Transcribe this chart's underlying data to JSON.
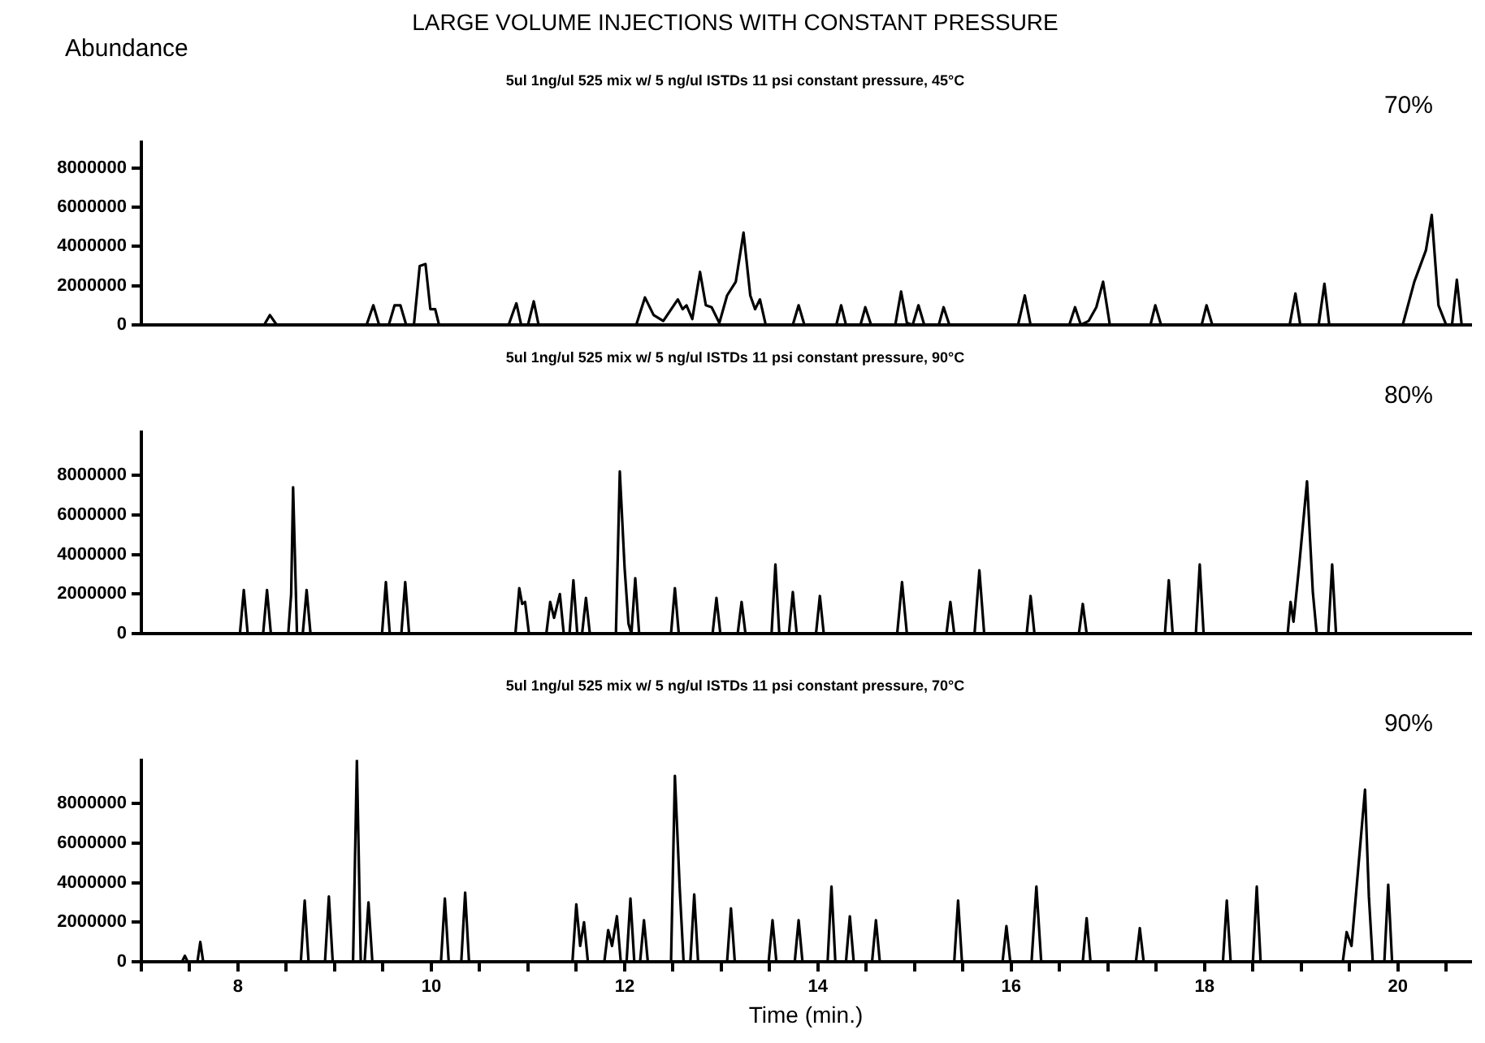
{
  "chart_data": [
    {
      "type": "line",
      "title": "LARGE VOLUME INJECTIONS WITH CONSTANT PRESSURE",
      "subtitle": "5ul 1ng/ul 525 mix w/ 5 ng/ul ISTDs 11 psi constant pressure, 45°C",
      "ylabel": "Abundance",
      "annotations": [
        "70%"
      ],
      "xlim": [
        7,
        20.75
      ],
      "ylim": [
        0,
        9300000
      ],
      "yticks": [
        0,
        2000000,
        4000000,
        6000000,
        8000000
      ],
      "tick_labels": "y",
      "grid": false,
      "legend": false,
      "marker": "none",
      "series": [
        {
          "color": "#000000",
          "x": [
            7.0,
            8.27,
            8.33,
            8.4,
            9.33,
            9.4,
            9.46,
            9.56,
            9.62,
            9.68,
            9.74,
            9.82,
            9.88,
            9.94,
            9.99,
            10.04,
            10.08,
            10.8,
            10.85,
            10.88,
            10.93,
            11.0,
            11.06,
            11.11,
            12.12,
            12.21,
            12.3,
            12.4,
            12.55,
            12.6,
            12.64,
            12.7,
            12.78,
            12.84,
            12.9,
            12.98,
            13.06,
            13.15,
            13.23,
            13.3,
            13.35,
            13.4,
            13.46,
            13.74,
            13.8,
            13.86,
            14.19,
            14.24,
            14.29,
            14.44,
            14.49,
            14.55,
            14.8,
            14.86,
            14.92,
            14.98,
            15.04,
            15.1,
            15.25,
            15.3,
            15.36,
            16.07,
            16.14,
            16.2,
            16.6,
            16.66,
            16.72,
            16.8,
            16.88,
            16.95,
            17.02,
            17.44,
            17.49,
            17.55,
            17.97,
            18.02,
            18.08,
            18.88,
            18.94,
            18.99,
            19.18,
            19.24,
            19.29,
            20.05,
            20.17,
            20.29,
            20.35,
            20.42,
            20.5,
            20.56,
            20.61,
            20.66,
            20.75
          ],
          "values": [
            0,
            0,
            500000,
            0,
            0,
            1000000,
            0,
            0,
            1000000,
            1000000,
            0,
            0,
            3000000,
            3100000,
            800000,
            800000,
            0,
            0,
            700000,
            1100000,
            0,
            0,
            1200000,
            0,
            0,
            1400000,
            500000,
            200000,
            1300000,
            800000,
            1000000,
            300000,
            2700000,
            1000000,
            900000,
            100000,
            1500000,
            2200000,
            4700000,
            1500000,
            800000,
            1300000,
            0,
            0,
            1000000,
            0,
            0,
            1000000,
            0,
            0,
            900000,
            0,
            0,
            1700000,
            100000,
            0,
            1000000,
            0,
            0,
            900000,
            0,
            0,
            1500000,
            0,
            0,
            900000,
            0,
            200000,
            900000,
            2200000,
            0,
            0,
            1000000,
            0,
            0,
            1000000,
            0,
            0,
            1600000,
            0,
            0,
            2100000,
            0,
            0,
            2200000,
            3800000,
            5600000,
            1000000,
            0,
            0,
            2300000,
            0,
            0
          ]
        }
      ]
    },
    {
      "type": "line",
      "subtitle": "5ul 1ng/ul 525 mix w/ 5 ng/ul ISTDs 11 psi constant pressure, 90°C",
      "annotations": [
        "80%"
      ],
      "xlim": [
        7,
        20.75
      ],
      "ylim": [
        0,
        10200000
      ],
      "yticks": [
        0,
        2000000,
        4000000,
        6000000,
        8000000
      ],
      "tick_labels": "y",
      "grid": false,
      "legend": false,
      "marker": "none",
      "series": [
        {
          "color": "#000000",
          "x": [
            7.0,
            8.02,
            8.06,
            8.1,
            8.26,
            8.3,
            8.34,
            8.52,
            8.55,
            8.57,
            8.61,
            8.67,
            8.71,
            8.75,
            9.49,
            9.53,
            9.57,
            9.69,
            9.73,
            9.77,
            10.87,
            10.91,
            10.94,
            10.97,
            11.01,
            11.19,
            11.23,
            11.27,
            11.33,
            11.37,
            11.43,
            11.47,
            11.51,
            11.56,
            11.6,
            11.64,
            11.91,
            11.95,
            12.0,
            12.04,
            12.07,
            12.11,
            12.15,
            12.48,
            12.52,
            12.56,
            12.91,
            12.95,
            12.99,
            13.17,
            13.21,
            13.25,
            13.52,
            13.56,
            13.6,
            13.7,
            13.74,
            13.78,
            13.98,
            14.02,
            14.06,
            14.82,
            14.87,
            14.92,
            15.33,
            15.37,
            15.41,
            15.62,
            15.67,
            15.72,
            16.16,
            16.2,
            16.24,
            16.7,
            16.74,
            16.78,
            17.59,
            17.63,
            17.67,
            17.91,
            17.95,
            17.99,
            18.86,
            18.89,
            18.92,
            18.98,
            19.06,
            19.12,
            19.16,
            19.28,
            19.32,
            19.36,
            20.75
          ],
          "values": [
            0,
            0,
            2200000,
            0,
            0,
            2200000,
            0,
            0,
            2000000,
            7400000,
            0,
            0,
            2200000,
            0,
            0,
            2600000,
            0,
            0,
            2600000,
            0,
            0,
            2300000,
            1500000,
            1600000,
            0,
            0,
            1600000,
            800000,
            2000000,
            0,
            0,
            2700000,
            0,
            0,
            1800000,
            0,
            0,
            8200000,
            3300000,
            500000,
            0,
            2800000,
            0,
            0,
            2300000,
            0,
            0,
            1800000,
            0,
            0,
            1600000,
            0,
            0,
            3500000,
            0,
            0,
            2100000,
            0,
            0,
            1900000,
            0,
            0,
            2600000,
            0,
            0,
            1600000,
            0,
            0,
            3200000,
            0,
            0,
            1900000,
            0,
            0,
            1500000,
            0,
            0,
            2700000,
            0,
            0,
            3500000,
            0,
            0,
            1600000,
            600000,
            3500000,
            7700000,
            2100000,
            0,
            0,
            3500000,
            0,
            0
          ]
        }
      ]
    },
    {
      "type": "line",
      "subtitle": "5ul 1ng/ul 525 mix w/ 5 ng/ul ISTDs 11 psi constant pressure, 70°C",
      "xlabel": "Time (min.)",
      "annotations": [
        "90%"
      ],
      "xlim": [
        7,
        20.75
      ],
      "xticks": [
        {
          "value": 7,
          "label": null
        },
        {
          "value": 7.5,
          "label": null
        },
        8,
        {
          "value": 8.5,
          "label": null
        },
        {
          "value": 9,
          "label": null
        },
        {
          "value": 9.5,
          "label": null
        },
        10,
        {
          "value": 10.5,
          "label": null
        },
        {
          "value": 11,
          "label": null
        },
        {
          "value": 11.5,
          "label": null
        },
        12,
        {
          "value": 12.5,
          "label": null
        },
        {
          "value": 13,
          "label": null
        },
        {
          "value": 13.5,
          "label": null
        },
        14,
        {
          "value": 14.5,
          "label": null
        },
        {
          "value": 15,
          "label": null
        },
        {
          "value": 15.5,
          "label": null
        },
        16,
        {
          "value": 16.5,
          "label": null
        },
        {
          "value": 17,
          "label": null
        },
        {
          "value": 17.5,
          "label": null
        },
        18,
        {
          "value": 18.5,
          "label": null
        },
        {
          "value": 19,
          "label": null
        },
        {
          "value": 19.5,
          "label": null
        },
        20,
        {
          "value": 20.5,
          "label": null
        }
      ],
      "ylim": [
        0,
        10200000
      ],
      "yticks": [
        0,
        2000000,
        4000000,
        6000000,
        8000000
      ],
      "grid": false,
      "legend": false,
      "marker": "none",
      "series": [
        {
          "color": "#000000",
          "x": [
            7.0,
            7.42,
            7.45,
            7.48,
            7.58,
            7.61,
            7.64,
            8.65,
            8.69,
            8.73,
            8.9,
            8.94,
            8.98,
            9.19,
            9.23,
            9.27,
            9.31,
            9.35,
            9.39,
            10.1,
            10.14,
            10.18,
            10.31,
            10.35,
            10.39,
            11.46,
            11.5,
            11.54,
            11.58,
            11.62,
            11.79,
            11.83,
            11.87,
            11.92,
            11.96,
            12.02,
            12.06,
            12.1,
            12.16,
            12.2,
            12.24,
            12.48,
            12.52,
            12.57,
            12.61,
            12.68,
            12.72,
            12.76,
            13.06,
            13.1,
            13.14,
            13.49,
            13.53,
            13.57,
            13.76,
            13.8,
            13.84,
            14.1,
            14.14,
            14.18,
            14.29,
            14.33,
            14.37,
            14.56,
            14.6,
            14.64,
            15.41,
            15.45,
            15.49,
            15.91,
            15.95,
            15.99,
            16.21,
            16.26,
            16.31,
            16.74,
            16.78,
            16.82,
            17.29,
            17.33,
            17.37,
            18.19,
            18.23,
            18.27,
            18.5,
            18.54,
            18.58,
            19.43,
            19.47,
            19.52,
            19.57,
            19.66,
            19.7,
            19.74,
            19.86,
            19.9,
            19.94,
            20.75
          ],
          "values": [
            0,
            0,
            300000,
            0,
            0,
            1000000,
            0,
            0,
            3100000,
            0,
            0,
            3300000,
            0,
            0,
            10200000,
            0,
            0,
            3000000,
            0,
            0,
            3200000,
            0,
            0,
            3500000,
            0,
            0,
            2900000,
            800000,
            2000000,
            0,
            0,
            1600000,
            800000,
            2300000,
            0,
            0,
            3200000,
            0,
            0,
            2100000,
            0,
            0,
            9400000,
            3700000,
            0,
            0,
            3400000,
            0,
            0,
            2700000,
            0,
            0,
            2100000,
            0,
            0,
            2100000,
            0,
            0,
            3800000,
            0,
            0,
            2300000,
            0,
            0,
            2100000,
            0,
            0,
            3100000,
            0,
            0,
            1800000,
            0,
            0,
            3800000,
            0,
            0,
            2200000,
            0,
            0,
            1700000,
            0,
            0,
            3100000,
            0,
            0,
            3800000,
            0,
            0,
            1500000,
            800000,
            3600000,
            8700000,
            3300000,
            0,
            0,
            3900000,
            0,
            0
          ]
        }
      ]
    }
  ]
}
